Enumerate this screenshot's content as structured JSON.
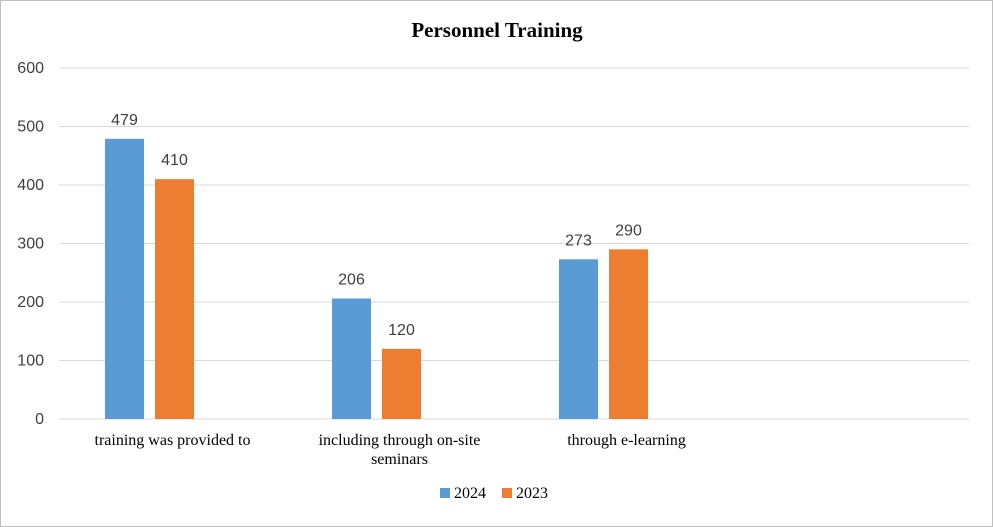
{
  "chart_data": {
    "type": "bar",
    "title": "Personnel Training",
    "categories": [
      [
        "training was provided to"
      ],
      [
        "including through on-site",
        "seminars"
      ],
      [
        "through e-learning"
      ]
    ],
    "series": [
      {
        "name": "2024",
        "color": "#5b9bd5",
        "values": [
          479,
          206,
          273
        ]
      },
      {
        "name": "2023",
        "color": "#ed7d31",
        "values": [
          410,
          120,
          290
        ]
      }
    ],
    "ylim": [
      0,
      600
    ],
    "yticks": [
      0,
      100,
      200,
      300,
      400,
      500,
      600
    ],
    "grid": true,
    "legend": "bottom"
  }
}
